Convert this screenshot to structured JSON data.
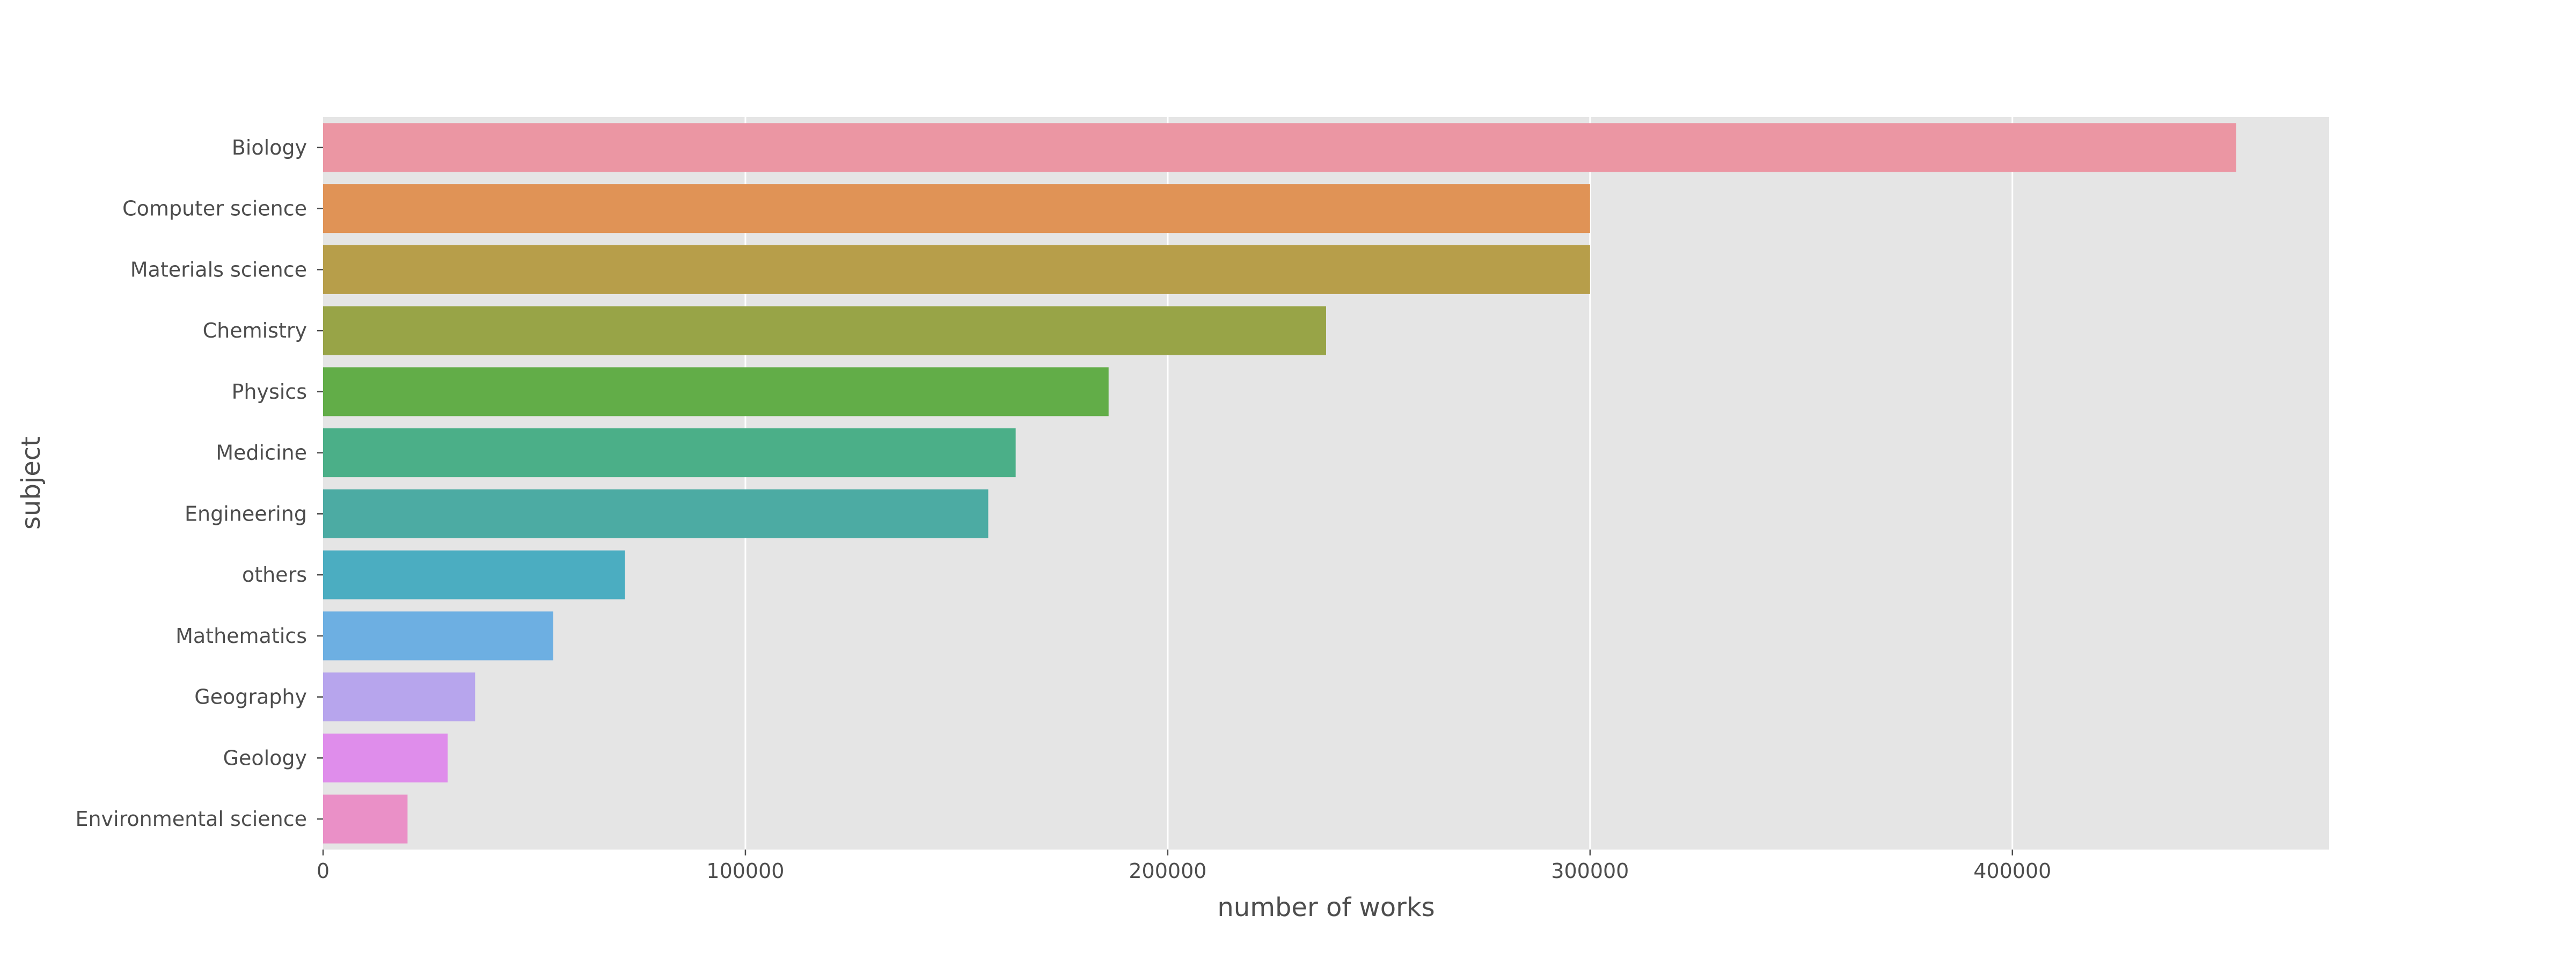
{
  "chart_data": {
    "type": "bar",
    "orientation": "horizontal",
    "title": "",
    "xlabel": "number of works",
    "ylabel": "subject",
    "categories": [
      "Biology",
      "Computer science",
      "Materials science",
      "Chemistry",
      "Physics",
      "Medicine",
      "Engineering",
      "others",
      "Mathematics",
      "Geography",
      "Geology",
      "Environmental science"
    ],
    "values": [
      453000,
      300000,
      300000,
      237500,
      186000,
      164000,
      157500,
      71500,
      54500,
      36000,
      29500,
      20000
    ],
    "xlim": [
      0,
      475000
    ],
    "xticks": [
      0,
      100000,
      200000,
      300000,
      400000
    ],
    "xtick_labels": [
      "0",
      "100000",
      "200000",
      "300000",
      "400000"
    ],
    "grid": true,
    "background": "#e5e5e5",
    "colors": [
      "#eb96a3",
      "#e09356",
      "#b79e4a",
      "#98a447",
      "#62ad48",
      "#4baf88",
      "#4caba3",
      "#4badc1",
      "#6dafe2",
      "#b7a5ed",
      "#df8deb",
      "#ea90c7"
    ]
  }
}
